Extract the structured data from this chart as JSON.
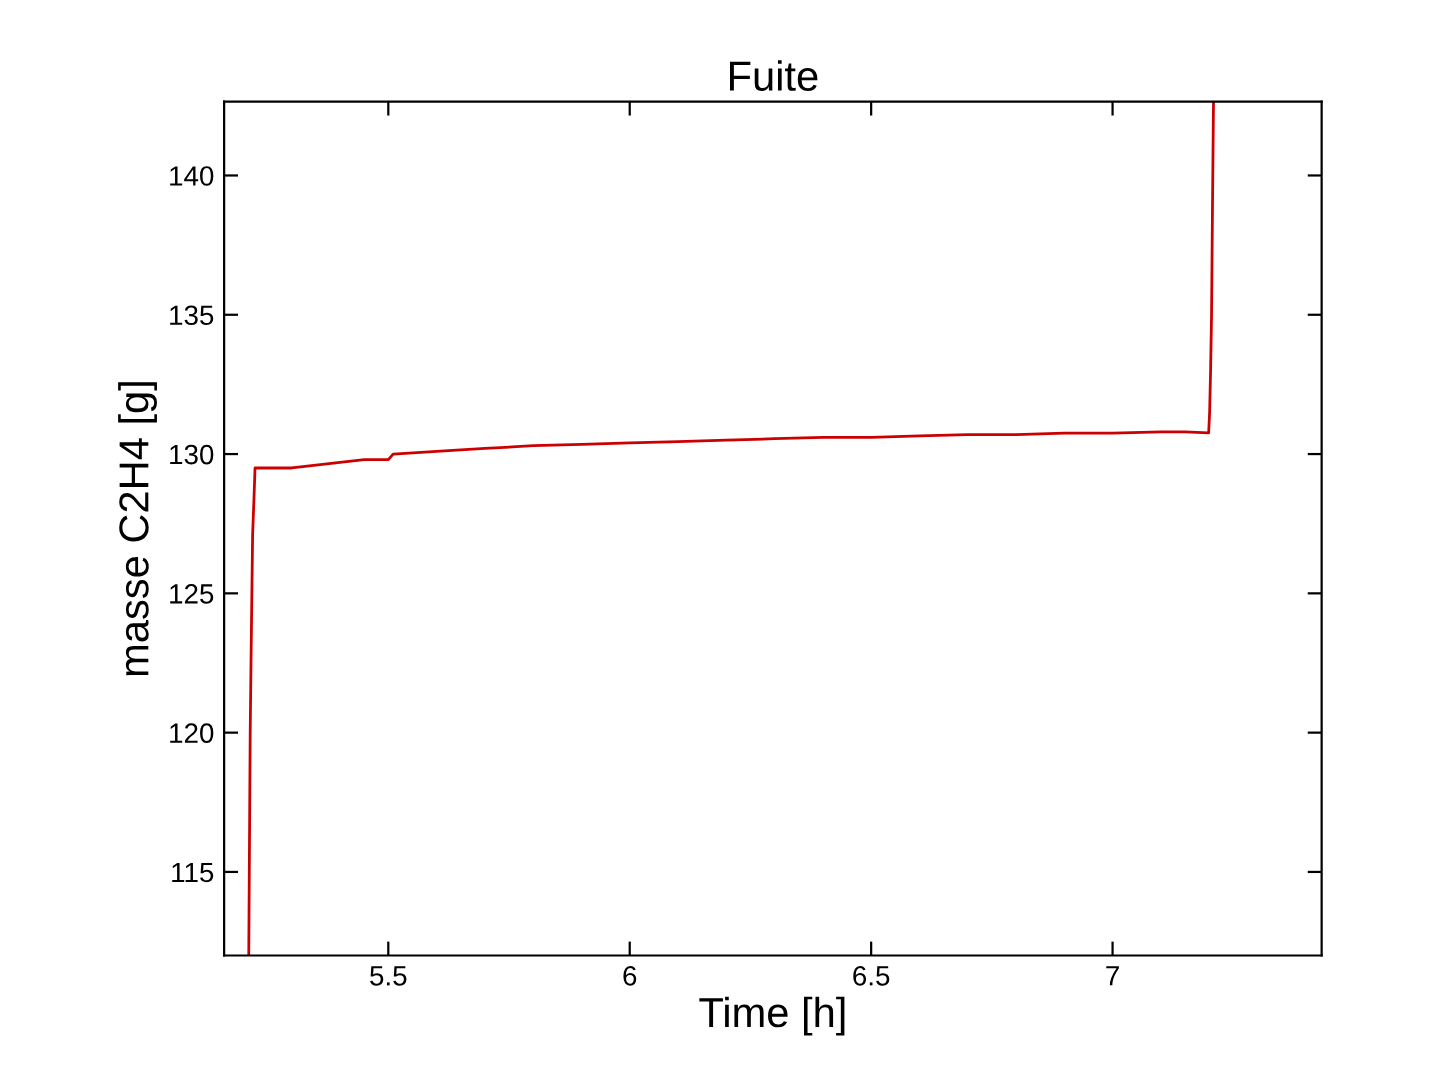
{
  "chart_data": {
    "type": "line",
    "title": "Fuite",
    "xlabel": "Time [h]",
    "ylabel": "masse C2H4 [g]",
    "xlim": [
      5.16,
      7.433
    ],
    "ylim": [
      112,
      142.65
    ],
    "xticks": [
      5.5,
      6,
      6.5,
      7
    ],
    "yticks": [
      115,
      120,
      125,
      130,
      135,
      140
    ],
    "grid": false,
    "marker": "none",
    "line_style": "solid",
    "series": [
      {
        "color": "#cc0000",
        "x": [
          5.211,
          5.214,
          5.216,
          5.219,
          5.222,
          5.224,
          5.3,
          5.35,
          5.4,
          5.45,
          5.5,
          5.51,
          5.6,
          5.7,
          5.8,
          5.9,
          6.0,
          6.1,
          6.2,
          6.3,
          6.4,
          6.5,
          6.6,
          6.7,
          6.8,
          6.9,
          7.0,
          7.1,
          7.15,
          7.199,
          7.201,
          7.203,
          7.205,
          7.207,
          7.209
        ],
        "values": [
          112,
          120,
          123,
          127.1,
          128.5,
          129.5,
          129.5,
          129.6,
          129.7,
          129.8,
          129.8,
          130.0,
          130.1,
          130.2,
          130.3,
          130.35,
          130.4,
          130.45,
          130.5,
          130.55,
          130.6,
          130.6,
          130.65,
          130.7,
          130.7,
          130.75,
          130.75,
          130.8,
          130.8,
          130.76,
          131.5,
          133.0,
          135.0,
          139.0,
          142.6
        ]
      }
    ]
  }
}
